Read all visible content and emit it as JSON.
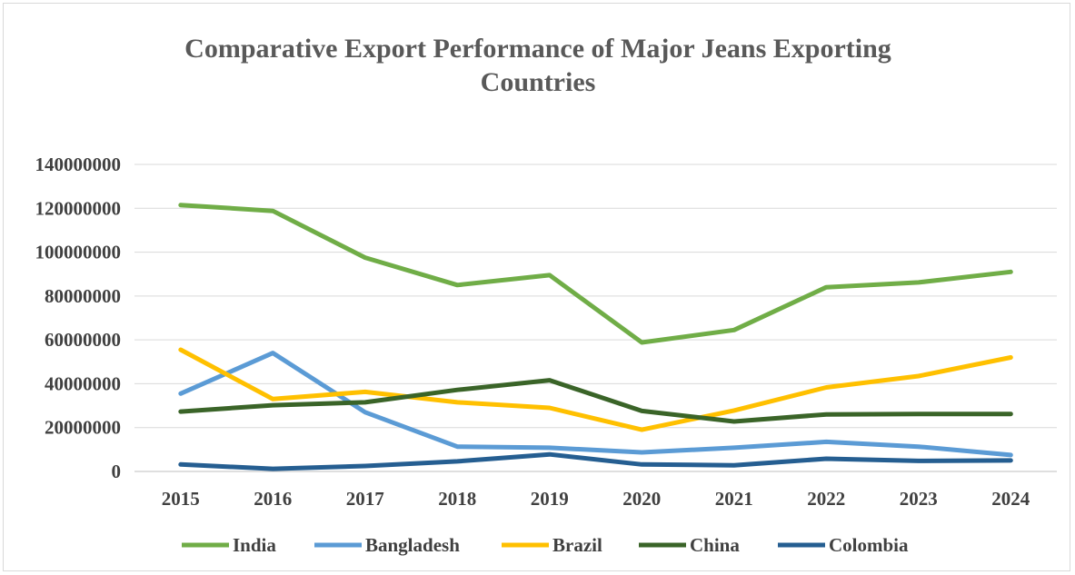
{
  "chart_data": {
    "type": "line",
    "title_line1": "Comparative Export Performance of Major Jeans Exporting",
    "title_line2": "Countries",
    "xlabel": "",
    "ylabel": "",
    "ylim": [
      0,
      140000000
    ],
    "y_ticks": [
      "0",
      "20000000",
      "40000000",
      "60000000",
      "80000000",
      "100000000",
      "120000000",
      "140000000"
    ],
    "x": [
      "2015",
      "2016",
      "2017",
      "2018",
      "2019",
      "2020",
      "2021",
      "2022",
      "2023",
      "2024"
    ],
    "grid": "horizontal",
    "legend": "bottom",
    "series": [
      {
        "name": "India",
        "color": "#70ad47",
        "values": [
          121500000,
          118800000,
          97500000,
          85000000,
          89500000,
          58800000,
          64500000,
          84000000,
          86200000,
          91000000
        ]
      },
      {
        "name": "Bangladesh",
        "color": "#5b9bd5",
        "values": [
          35500000,
          54000000,
          27000000,
          11300000,
          10800000,
          8700000,
          10800000,
          13500000,
          11300000,
          7500000
        ]
      },
      {
        "name": "Brazil",
        "color": "#ffc000",
        "values": [
          55500000,
          33000000,
          36300000,
          31500000,
          29000000,
          19000000,
          27800000,
          38300000,
          43500000,
          52000000
        ]
      },
      {
        "name": "China",
        "color": "#3a6428",
        "values": [
          27300000,
          30200000,
          31500000,
          37200000,
          41600000,
          27600000,
          22800000,
          26000000,
          26200000,
          26200000
        ]
      },
      {
        "name": "Colombia",
        "color": "#255e91",
        "values": [
          3200000,
          1200000,
          2500000,
          4600000,
          7800000,
          3200000,
          2800000,
          5800000,
          4800000,
          5000000
        ]
      }
    ]
  }
}
